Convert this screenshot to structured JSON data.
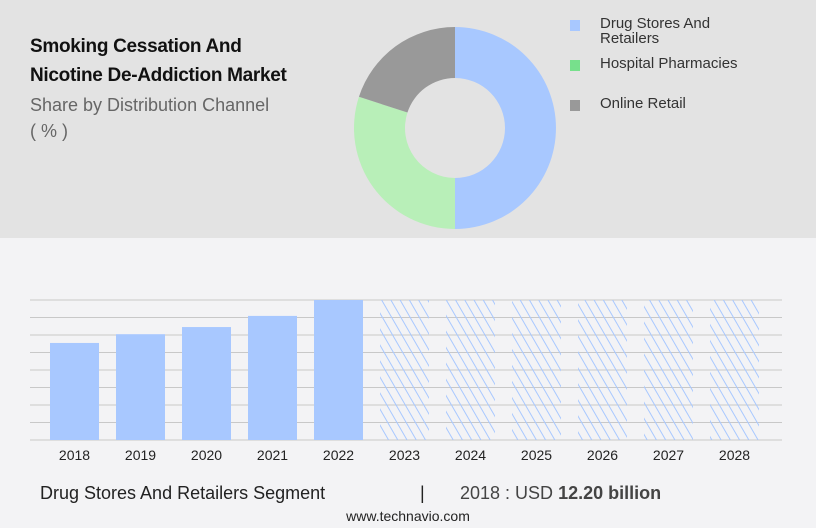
{
  "header": {
    "title_line1": "Smoking Cessation And",
    "title_line2": "Nicotine De-Addiction Market",
    "subtitle": "Share by Distribution Channel",
    "unit": "( % )"
  },
  "chart_data": [
    {
      "type": "pie",
      "variant": "donut",
      "slices": [
        {
          "name": "Drug Stores And Retailers",
          "value": 50,
          "color": "#a8c8ff"
        },
        {
          "name": "Hospital Pharmacies",
          "value": 30,
          "color": "#b8efb8"
        },
        {
          "name": "Online Retail",
          "value": 20,
          "color": "#999999"
        }
      ],
      "legend_colors": [
        "#a8c8ff",
        "#77e08c",
        "#999999"
      ],
      "legend_placement": "right"
    },
    {
      "type": "bar",
      "categories": [
        "2018",
        "2019",
        "2020",
        "2021",
        "2022",
        "2023",
        "2024",
        "2025",
        "2026",
        "2027",
        "2028"
      ],
      "values": [
        12.2,
        13.3,
        14.2,
        15.6,
        17.6,
        null,
        null,
        null,
        null,
        null,
        null
      ],
      "forecast_categories": [
        "2023",
        "2024",
        "2025",
        "2026",
        "2027",
        "2028"
      ],
      "ylim": [
        0,
        17.6
      ],
      "grid": true,
      "color": "#a8c8ff",
      "forecast_style": "hatched"
    }
  ],
  "footer": {
    "segment": "Drug Stores And Retailers Segment",
    "separator": "|",
    "year_label": "2018 : USD ",
    "value": "12.20 billion",
    "url": "www.technavio.com"
  }
}
